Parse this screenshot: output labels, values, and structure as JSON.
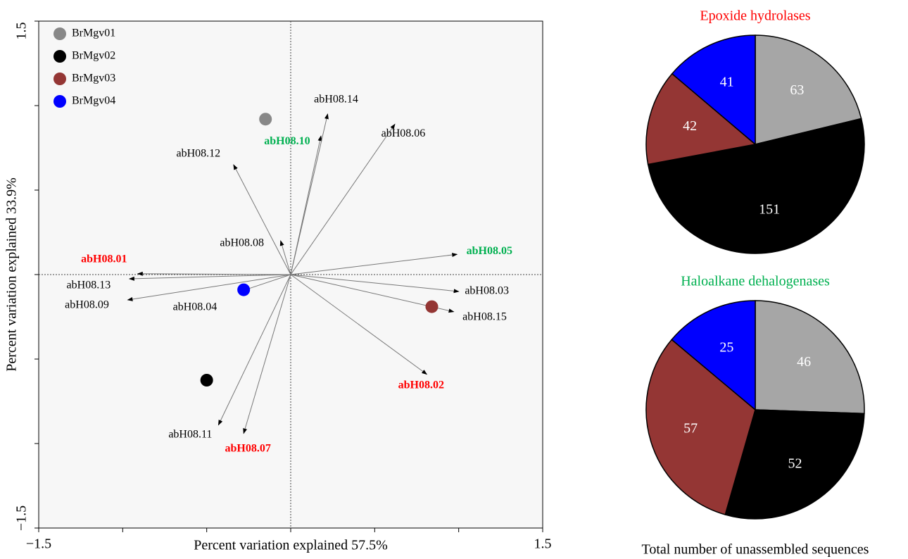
{
  "chart_data": [
    {
      "type": "biplot",
      "xlabel": "Percent variation explained 57.5%",
      "ylabel": "Percent variation explained 33.9%",
      "xlim": [
        -1.5,
        1.5
      ],
      "ylim": [
        -1.5,
        1.5
      ],
      "xticks": [
        {
          "value": -1.5,
          "label": "−1.5"
        },
        1.5
      ],
      "yticks": [
        {
          "value": -1.5,
          "label": "−1.5"
        },
        1.5
      ],
      "xminor_ticks": [
        -1,
        -0.5,
        0,
        0.5,
        1
      ],
      "yminor_ticks": [
        -1,
        -0.5,
        0,
        0.5,
        1
      ],
      "zero_lines": true,
      "legend": "upper left",
      "series": [
        {
          "name": "BrMgv01",
          "color": "#888888",
          "x": [
            -0.15
          ],
          "values": [
            0.92
          ]
        },
        {
          "name": "BrMgv02",
          "color": "#000000",
          "x": [
            -0.5
          ],
          "values": [
            -0.625
          ]
        },
        {
          "name": "BrMgv03",
          "color": "#943634",
          "x": [
            0.84
          ],
          "values": [
            -0.19
          ]
        },
        {
          "name": "BrMgv04",
          "color": "#0000ff",
          "x": [
            -0.28
          ],
          "values": [
            -0.09
          ]
        }
      ],
      "vectors": [
        {
          "name": "abH08.01",
          "x": -0.91,
          "y": 0.005,
          "color": "#ff0000"
        },
        {
          "name": "abH08.13",
          "x": -0.96,
          "y": -0.025,
          "color": "#000000"
        },
        {
          "name": "abH08.09",
          "x": -0.97,
          "y": -0.15,
          "color": "#000000"
        },
        {
          "name": "abH08.04",
          "x": -0.285,
          "y": -0.095,
          "color": "#000000"
        },
        {
          "name": "abH08.12",
          "x": -0.34,
          "y": 0.65,
          "color": "#000000"
        },
        {
          "name": "abH08.08",
          "x": -0.06,
          "y": 0.2,
          "color": "#000000"
        },
        {
          "name": "abH08.10",
          "x": 0.18,
          "y": 0.82,
          "color": "#00b050"
        },
        {
          "name": "abH08.14",
          "x": 0.22,
          "y": 0.95,
          "color": "#000000"
        },
        {
          "name": "abH08.06",
          "x": 0.62,
          "y": 0.89,
          "color": "#000000"
        },
        {
          "name": "abH08.05",
          "x": 0.99,
          "y": 0.12,
          "color": "#00b050"
        },
        {
          "name": "abH08.03",
          "x": 1.0,
          "y": -0.1,
          "color": "#000000"
        },
        {
          "name": "abH08.15",
          "x": 0.97,
          "y": -0.22,
          "color": "#000000"
        },
        {
          "name": "abH08.02",
          "x": 0.81,
          "y": -0.59,
          "color": "#ff0000"
        },
        {
          "name": "abH08.07",
          "x": -0.28,
          "y": -0.94,
          "color": "#ff0000"
        },
        {
          "name": "abH08.11",
          "x": -0.43,
          "y": -0.89,
          "color": "#000000"
        }
      ]
    },
    {
      "type": "pie",
      "title": "Epoxide hydrolases",
      "title_color": "#ff0000",
      "values": [
        63,
        151,
        42,
        41
      ],
      "colors": [
        "#a6a6a6",
        "#000000",
        "#943634",
        "#0000ff"
      ]
    },
    {
      "type": "pie",
      "title": "Haloalkane dehalogenases",
      "title_color": "#00b050",
      "values": [
        46,
        52,
        57,
        25
      ],
      "colors": [
        "#a6a6a6",
        "#000000",
        "#943634",
        "#0000ff"
      ]
    }
  ],
  "footer": "Total number of unassembled sequences"
}
